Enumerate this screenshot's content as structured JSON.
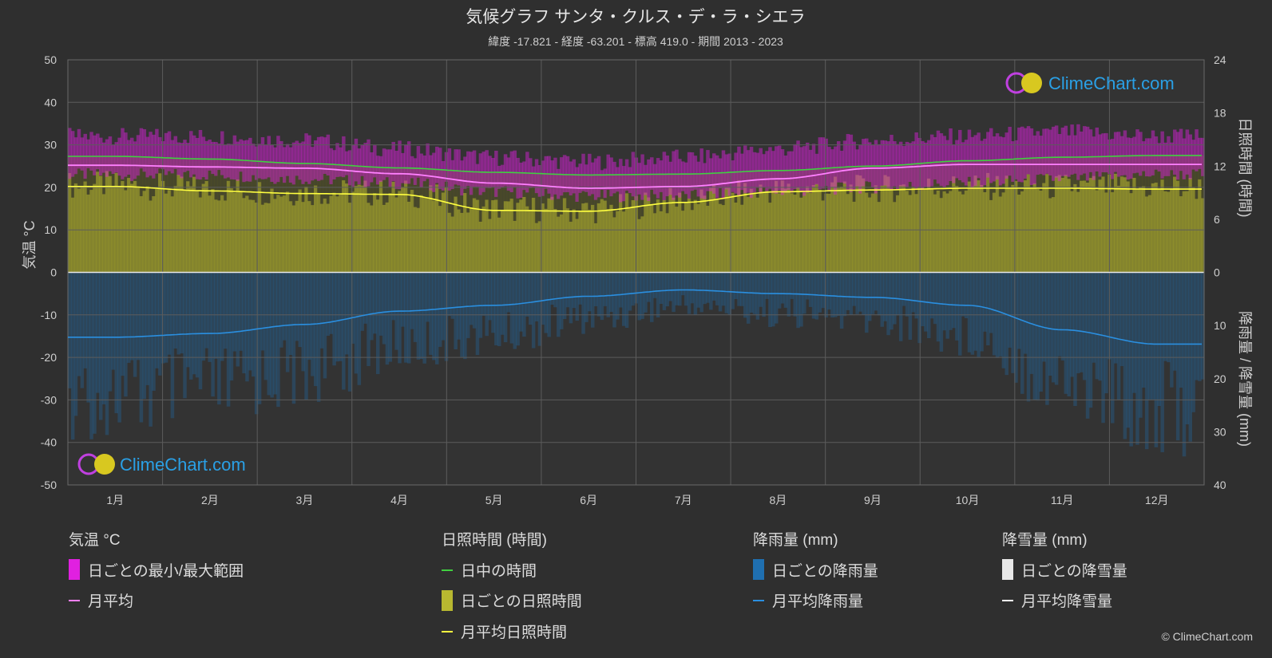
{
  "title": "気候グラフ サンタ・クルス・デ・ラ・シエラ",
  "subtitle": "緯度 -17.821 - 経度 -63.201 - 標高 419.0 - 期間 2013 - 2023",
  "logo_text": "ClimeChart.com",
  "copyright": "© ClimeChart.com",
  "colors": {
    "background": "#2f2f2f",
    "temp_range": "#e020e0",
    "temp_avg": "#ff80ff",
    "daylight": "#40d040",
    "sunshine_fill": "#b8b830",
    "sunshine_avg": "#ffff40",
    "rain_fill": "#1f6fb0",
    "rain_avg": "#2a8fe0",
    "snow": "#ffffff"
  },
  "legend": {
    "temperature": {
      "heading": "気温 °C",
      "range": "日ごとの最小/最大範囲",
      "avg": "月平均"
    },
    "sunshine": {
      "heading": "日照時間 (時間)",
      "daylight": "日中の時間",
      "daily": "日ごとの日照時間",
      "avg": "月平均日照時間"
    },
    "rain": {
      "heading": "降雨量 (mm)",
      "daily": "日ごとの降雨量",
      "avg": "月平均降雨量"
    },
    "snow": {
      "heading": "降雪量 (mm)",
      "daily": "日ごとの降雪量",
      "avg": "月平均降雪量"
    }
  },
  "chart_data": {
    "type": "line",
    "categories": [
      "1月",
      "2月",
      "3月",
      "4月",
      "5月",
      "6月",
      "7月",
      "8月",
      "9月",
      "10月",
      "11月",
      "12月"
    ],
    "axes": {
      "left": {
        "label": "気温 °C",
        "range": [
          -50,
          50
        ],
        "ticks": [
          50,
          40,
          30,
          20,
          10,
          0,
          -10,
          -20,
          -30,
          -40,
          -50
        ]
      },
      "right_top": {
        "label": "日照時間 (時間)",
        "range": [
          0,
          24
        ],
        "ticks": [
          24,
          18,
          12,
          6,
          0
        ]
      },
      "right_bottom": {
        "label": "降雨量 / 降雪量 (mm)",
        "range": [
          0,
          40
        ],
        "ticks": [
          0,
          10,
          20,
          30,
          40
        ]
      }
    },
    "grid": true,
    "series": [
      {
        "name": "日中の時間",
        "axis": "hours",
        "values": [
          13.1,
          12.8,
          12.3,
          11.8,
          11.3,
          11.0,
          11.1,
          11.5,
          12.0,
          12.6,
          13.0,
          13.2
        ]
      },
      {
        "name": "月平均",
        "axis": "temperature",
        "values": [
          25.2,
          24.8,
          24.5,
          23.2,
          21.0,
          19.8,
          20.2,
          22.0,
          24.5,
          25.4,
          25.4,
          25.4
        ]
      },
      {
        "name": "月平均日照時間",
        "axis": "hours",
        "values": [
          9.7,
          9.2,
          8.9,
          8.8,
          7.0,
          6.9,
          7.9,
          9.1,
          9.3,
          9.5,
          9.5,
          9.4
        ]
      },
      {
        "name": "月平均降雨量",
        "axis": "precip",
        "values": [
          12.2,
          11.5,
          9.8,
          7.3,
          6.2,
          4.5,
          3.3,
          4.0,
          4.7,
          6.2,
          10.8,
          13.5
        ]
      },
      {
        "name": "日ごとの最小/最大範囲",
        "axis": "temperature",
        "min": [
          23,
          23,
          22,
          21,
          19,
          18,
          18,
          19,
          20,
          21,
          22,
          23
        ],
        "max": [
          32,
          32,
          31,
          29,
          27,
          26,
          27,
          29,
          31,
          32,
          33,
          32
        ]
      }
    ]
  }
}
